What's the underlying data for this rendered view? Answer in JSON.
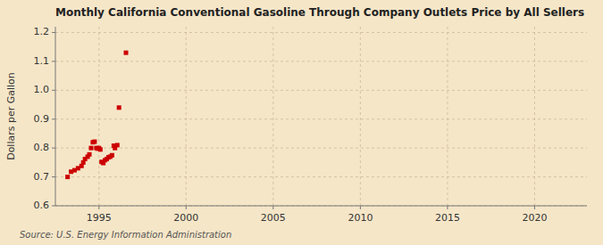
{
  "chart_data": {
    "type": "scatter",
    "title": "Monthly California Conventional Gasoline Through Company Outlets Price by All Sellers",
    "y_label": "Dollars per Gallon",
    "annotations": [
      "Source: U.S. Energy Information Administration"
    ],
    "color": "#cc0000",
    "marker": "square",
    "grid": true,
    "xlim": [
      1992.5,
      2023
    ],
    "ylim": [
      0.6,
      1.22
    ],
    "xticks": [
      1995,
      2000,
      2005,
      2010,
      2015,
      2020
    ],
    "yticks": [
      0.6,
      0.7,
      0.8,
      0.9,
      {
        "value": 1,
        "label": "1.0"
      },
      1.1,
      1.2
    ],
    "x": [
      1993.2,
      1993.4,
      1993.6,
      1993.8,
      1994.0,
      1994.1,
      1994.2,
      1994.35,
      1994.45,
      1994.55,
      1994.65,
      1994.75,
      1994.85,
      1994.92,
      1995.0,
      1995.08,
      1995.15,
      1995.25,
      1995.35,
      1995.45,
      1995.55,
      1995.65,
      1995.75,
      1995.85,
      1995.92,
      1996.05,
      1996.15,
      1996.55
    ],
    "values": [
      0.7,
      0.718,
      0.723,
      0.73,
      0.738,
      0.75,
      0.762,
      0.77,
      0.778,
      0.8,
      0.82,
      0.822,
      0.8,
      0.798,
      0.8,
      0.795,
      0.752,
      0.748,
      0.758,
      0.762,
      0.768,
      0.77,
      0.775,
      0.808,
      0.8,
      0.81,
      0.94,
      1.13
    ]
  }
}
